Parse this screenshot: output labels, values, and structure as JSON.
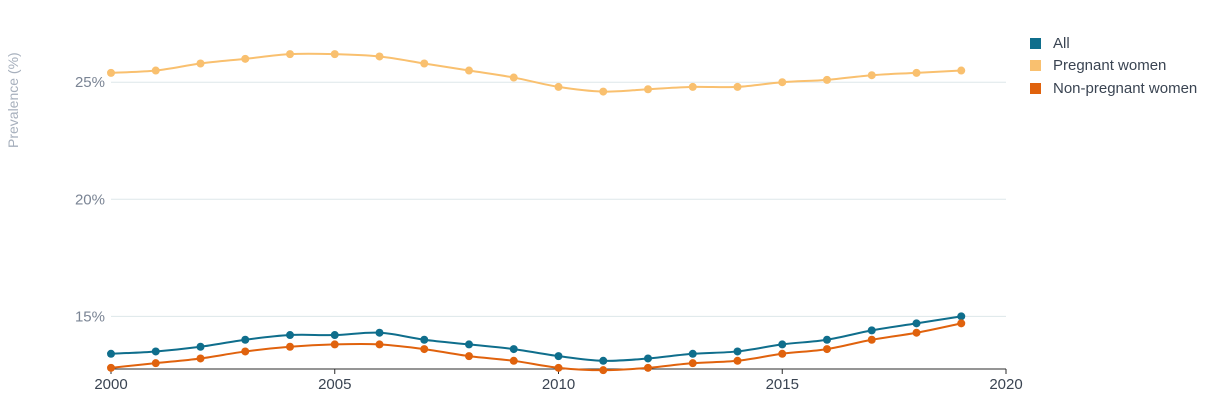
{
  "chart_data": {
    "type": "line",
    "ylabel": "Prevalence (%)",
    "xlim": [
      2000,
      2020
    ],
    "ylim": [
      12.75,
      28
    ],
    "yticks": [
      {
        "value": 15,
        "label": "15%"
      },
      {
        "value": 20,
        "label": "20%"
      },
      {
        "value": 25,
        "label": "25%"
      }
    ],
    "xticks": [
      {
        "value": 2000,
        "label": "2000"
      },
      {
        "value": 2005,
        "label": "2005"
      },
      {
        "value": 2010,
        "label": "2010"
      },
      {
        "value": 2015,
        "label": "2015"
      },
      {
        "value": 2020,
        "label": "2020"
      }
    ],
    "grid": true,
    "legend_position": "top-right",
    "x": [
      2000,
      2001,
      2002,
      2003,
      2004,
      2005,
      2006,
      2007,
      2008,
      2009,
      2010,
      2011,
      2012,
      2013,
      2014,
      2015,
      2016,
      2017,
      2018,
      2019
    ],
    "series": [
      {
        "name": "All",
        "color": "#0f6e8c",
        "values": [
          13.4,
          13.5,
          13.7,
          14.0,
          14.2,
          14.2,
          14.3,
          14.0,
          13.8,
          13.6,
          13.3,
          13.1,
          13.2,
          13.4,
          13.5,
          13.8,
          14.0,
          14.4,
          14.7,
          15.0
        ]
      },
      {
        "name": "Pregnant women",
        "color": "#f9c06f",
        "values": [
          25.4,
          25.5,
          25.8,
          26.0,
          26.2,
          26.2,
          26.1,
          25.8,
          25.5,
          25.2,
          24.8,
          24.6,
          24.7,
          24.8,
          24.8,
          25.0,
          25.1,
          25.3,
          25.4,
          25.5
        ]
      },
      {
        "name": "Non-pregnant women",
        "color": "#e0620d",
        "values": [
          12.8,
          13.0,
          13.2,
          13.5,
          13.7,
          13.8,
          13.8,
          13.6,
          13.3,
          13.1,
          12.8,
          12.7,
          12.8,
          13.0,
          13.1,
          13.4,
          13.6,
          14.0,
          14.3,
          14.7
        ]
      }
    ]
  }
}
